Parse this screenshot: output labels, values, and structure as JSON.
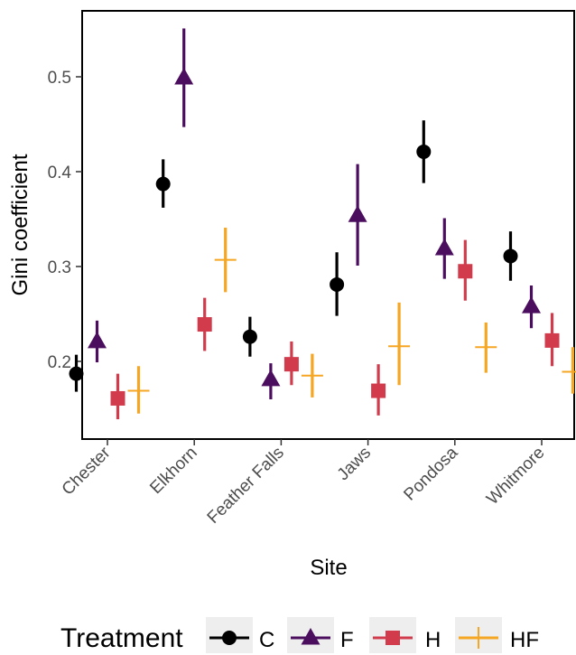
{
  "chart_data": {
    "type": "scatter",
    "title": "",
    "xlabel": "Site",
    "ylabel": "Gini coefficient",
    "categories": [
      "Chester",
      "Elkhorn",
      "Feather Falls",
      "Jaws",
      "Pondosa",
      "Whitmore"
    ],
    "ylim": [
      0.12,
      0.57
    ],
    "yticks": [
      0.2,
      0.3,
      0.4,
      0.5
    ],
    "ytick_labels": [
      "0.2",
      "0.3",
      "0.4",
      "0.5"
    ],
    "grid": false,
    "legend_placement": "bottom",
    "legend_title": "Treatment",
    "series": [
      {
        "name": "C",
        "marker": "circle",
        "color": "#000000",
        "values": [
          0.187,
          0.387,
          0.226,
          0.281,
          0.421,
          0.311
        ],
        "lower": [
          0.168,
          0.362,
          0.205,
          0.248,
          0.388,
          0.285
        ],
        "upper": [
          0.207,
          0.413,
          0.247,
          0.315,
          0.454,
          0.337
        ]
      },
      {
        "name": "F",
        "marker": "triangle",
        "color": "#4b0e5e",
        "values": [
          0.221,
          0.499,
          0.181,
          0.354,
          0.319,
          0.258
        ],
        "lower": [
          0.199,
          0.447,
          0.16,
          0.301,
          0.287,
          0.235
        ],
        "upper": [
          0.243,
          0.551,
          0.198,
          0.408,
          0.351,
          0.28
        ]
      },
      {
        "name": "H",
        "marker": "square",
        "color": "#d13b4c",
        "values": [
          0.161,
          0.239,
          0.197,
          0.169,
          0.295,
          0.222
        ],
        "lower": [
          0.139,
          0.211,
          0.175,
          0.143,
          0.264,
          0.195
        ],
        "upper": [
          0.187,
          0.267,
          0.221,
          0.197,
          0.328,
          0.251
        ]
      },
      {
        "name": "HF",
        "marker": "plus",
        "color": "#f5a623",
        "values": [
          0.169,
          0.307,
          0.185,
          0.216,
          0.215,
          0.189
        ],
        "lower": [
          0.145,
          0.273,
          0.162,
          0.175,
          0.188,
          0.166
        ],
        "upper": [
          0.195,
          0.341,
          0.208,
          0.262,
          0.241,
          0.215
        ]
      }
    ]
  }
}
